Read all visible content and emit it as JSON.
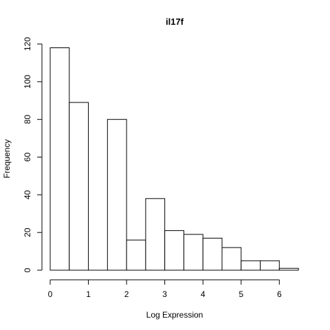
{
  "chart_data": {
    "type": "bar",
    "title": "il17f",
    "xlabel": "Log Expression",
    "ylabel": "Frequency",
    "bin_edges": [
      0,
      0.5,
      1,
      1.5,
      2,
      2.5,
      3,
      3.5,
      4,
      4.5,
      5,
      5.5,
      6,
      6.5
    ],
    "values": [
      118,
      89,
      0,
      80,
      16,
      38,
      21,
      19,
      17,
      12,
      5,
      5,
      1
    ],
    "xticks": [
      "0",
      "1",
      "2",
      "3",
      "4",
      "5",
      "6"
    ],
    "yticks": [
      "0",
      "20",
      "40",
      "60",
      "80",
      "100",
      "120"
    ],
    "xlim": [
      0,
      6.5
    ],
    "ylim": [
      0,
      120
    ],
    "grid": false,
    "colors": {
      "bar_fill": "#ffffff",
      "bar_stroke": "#000000"
    }
  }
}
